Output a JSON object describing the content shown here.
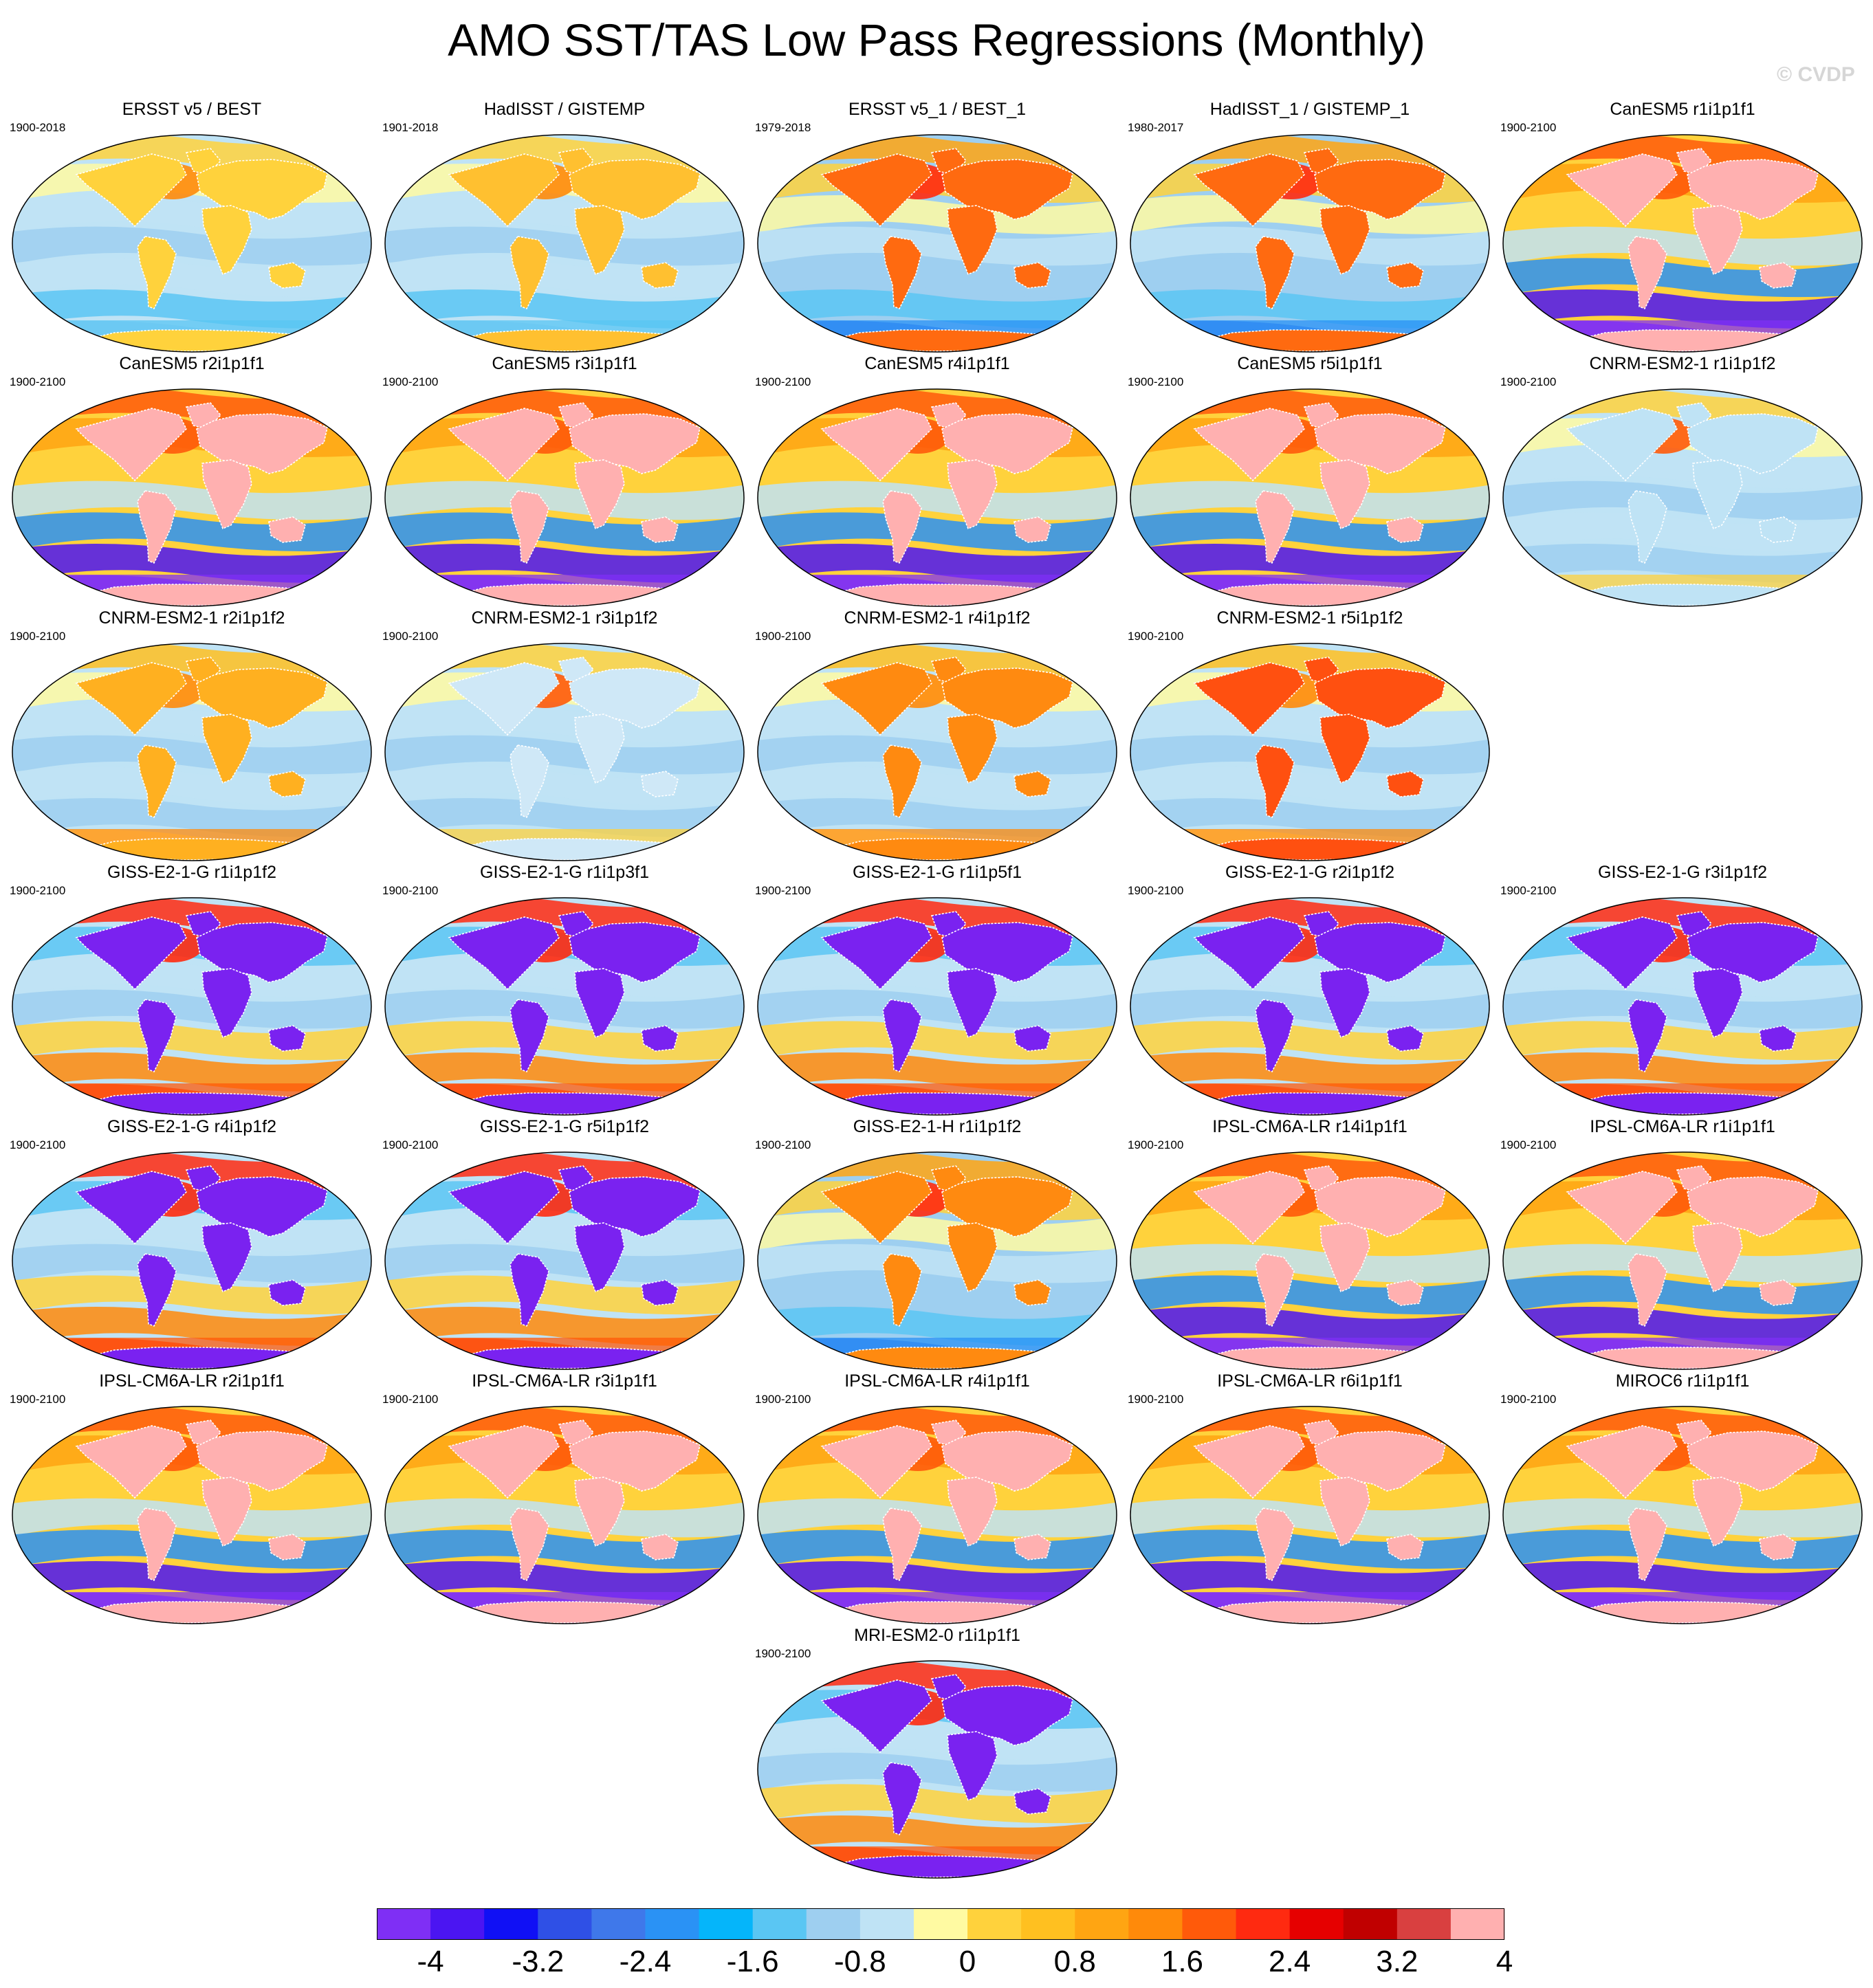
{
  "title": "AMO SST/TAS Low Pass Regressions (Monthly)",
  "copyright": "© CVDP",
  "panels": [
    {
      "title": "ERSST v5 / BEST",
      "period": "1900-2018",
      "pattern": "obs",
      "land_color": "#ffd23c"
    },
    {
      "title": "HadISST / GISTEMP",
      "period": "1901-2018",
      "pattern": "obs",
      "land_color": "#ffc030"
    },
    {
      "title": "ERSST v5_1 / BEST_1",
      "period": "1979-2018",
      "pattern": "obs-warm",
      "land_color": "#ff6a10"
    },
    {
      "title": "HadISST_1 / GISTEMP_1",
      "period": "1980-2017",
      "pattern": "obs-warm",
      "land_color": "#ff6a10"
    },
    {
      "title": "CanESM5 r1i1p1f1",
      "period": "1900-2100",
      "pattern": "pink",
      "land_color": "#ffb0b0"
    },
    {
      "title": "CanESM5 r2i1p1f1",
      "period": "1900-2100",
      "pattern": "pink",
      "land_color": "#ffb0b0"
    },
    {
      "title": "CanESM5 r3i1p1f1",
      "period": "1900-2100",
      "pattern": "pink",
      "land_color": "#ffb0b0"
    },
    {
      "title": "CanESM5 r4i1p1f1",
      "period": "1900-2100",
      "pattern": "pink",
      "land_color": "#ffb0b0"
    },
    {
      "title": "CanESM5 r5i1p1f1",
      "period": "1900-2100",
      "pattern": "pink",
      "land_color": "#ffb0b0"
    },
    {
      "title": "CNRM-ESM2-1 r1i1p1f2",
      "period": "1900-2100",
      "pattern": "weak",
      "land_color": "#bfe3f5"
    },
    {
      "title": "CNRM-ESM2-1 r2i1p1f2",
      "period": "1900-2100",
      "pattern": "weak-warm",
      "land_color": "#ffb020"
    },
    {
      "title": "CNRM-ESM2-1 r3i1p1f2",
      "period": "1900-2100",
      "pattern": "weak",
      "land_color": "#cfe8f7"
    },
    {
      "title": "CNRM-ESM2-1 r4i1p1f2",
      "period": "1900-2100",
      "pattern": "weak-warm",
      "land_color": "#ff8a10"
    },
    {
      "title": "CNRM-ESM2-1 r5i1p1f2",
      "period": "1900-2100",
      "pattern": "weak-warm",
      "land_color": "#ff5010"
    },
    {
      "title": "GISS-E2-1-G r1i1p1f2",
      "period": "1900-2100",
      "pattern": "purple",
      "land_color": "#7a22f0"
    },
    {
      "title": "GISS-E2-1-G r1i1p3f1",
      "period": "1900-2100",
      "pattern": "purple",
      "land_color": "#7a22f0"
    },
    {
      "title": "GISS-E2-1-G r1i1p5f1",
      "period": "1900-2100",
      "pattern": "purple",
      "land_color": "#7a22f0"
    },
    {
      "title": "GISS-E2-1-G r2i1p1f2",
      "period": "1900-2100",
      "pattern": "purple",
      "land_color": "#7a22f0"
    },
    {
      "title": "GISS-E2-1-G r3i1p1f2",
      "period": "1900-2100",
      "pattern": "purple",
      "land_color": "#7a22f0"
    },
    {
      "title": "GISS-E2-1-G r4i1p1f2",
      "period": "1900-2100",
      "pattern": "purple",
      "land_color": "#7a22f0"
    },
    {
      "title": "GISS-E2-1-G r5i1p1f2",
      "period": "1900-2100",
      "pattern": "purple",
      "land_color": "#7a22f0"
    },
    {
      "title": "GISS-E2-1-H r1i1p1f2",
      "period": "1900-2100",
      "pattern": "obs-warm",
      "land_color": "#ff8a10"
    },
    {
      "title": "IPSL-CM6A-LR r14i1p1f1",
      "period": "1900-2100",
      "pattern": "pink",
      "land_color": "#ffb0b0"
    },
    {
      "title": "IPSL-CM6A-LR r1i1p1f1",
      "period": "1900-2100",
      "pattern": "pink",
      "land_color": "#ffb0b0"
    },
    {
      "title": "IPSL-CM6A-LR r2i1p1f1",
      "period": "1900-2100",
      "pattern": "pink",
      "land_color": "#ffb0b0"
    },
    {
      "title": "IPSL-CM6A-LR r3i1p1f1",
      "period": "1900-2100",
      "pattern": "pink",
      "land_color": "#ffb0b0"
    },
    {
      "title": "IPSL-CM6A-LR r4i1p1f1",
      "period": "1900-2100",
      "pattern": "pink",
      "land_color": "#ffb0b0"
    },
    {
      "title": "IPSL-CM6A-LR r6i1p1f1",
      "period": "1900-2100",
      "pattern": "pink",
      "land_color": "#ffb0b0"
    },
    {
      "title": "MIROC6 r1i1p1f1",
      "period": "1900-2100",
      "pattern": "pink",
      "land_color": "#ffb0b0"
    },
    {
      "title": "MRI-ESM2-0 r1i1p1f1",
      "period": "1900-2100",
      "pattern": "purple",
      "land_color": "#7a22f0"
    }
  ],
  "colorbar": {
    "colors": [
      "#7f2ff5",
      "#4b15f2",
      "#1010f5",
      "#2f50e6",
      "#3f78ea",
      "#2a92f5",
      "#05b5fa",
      "#5ac6f3",
      "#9ecff0",
      "#bfe3f5",
      "#fffaa2",
      "#ffd23c",
      "#ffc020",
      "#ffa512",
      "#ff8a0a",
      "#ff5a0a",
      "#ff2a10",
      "#e60000",
      "#c00000",
      "#d94040",
      "#ffb0b0"
    ],
    "ticks": [
      "-4",
      "-3.2",
      "-2.4",
      "-1.6",
      "-0.8",
      "0",
      "0.8",
      "1.6",
      "2.4",
      "3.2",
      "4"
    ]
  }
}
